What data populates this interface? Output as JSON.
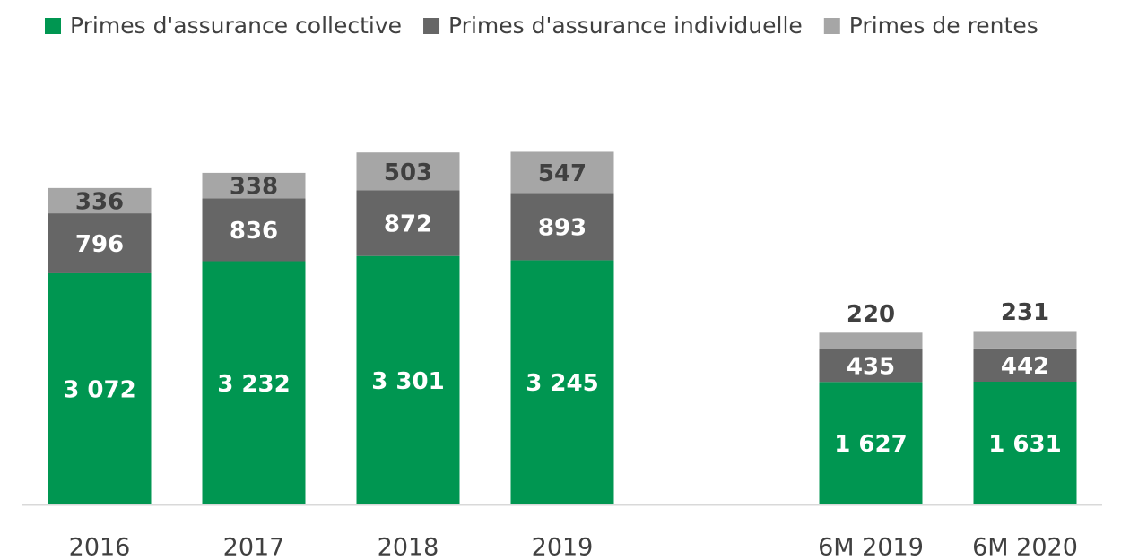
{
  "chart_data": {
    "type": "stacked-bar",
    "categories": [
      "2016",
      "2017",
      "2018",
      "2019",
      null,
      "6M 2019",
      "6M 2020"
    ],
    "series": [
      {
        "name": "Primes d'assurance collective",
        "color": "#009651",
        "values": [
          3072,
          3232,
          3301,
          3245,
          null,
          1627,
          1631
        ],
        "value_labels": [
          "3 072",
          "3 232",
          "3 301",
          "3 245",
          null,
          "1 627",
          "1 631"
        ]
      },
      {
        "name": "Primes d'assurance individuelle",
        "color": "#666666",
        "values": [
          796,
          836,
          872,
          893,
          null,
          435,
          442
        ],
        "value_labels": [
          "796",
          "836",
          "872",
          "893",
          null,
          "435",
          "442"
        ]
      },
      {
        "name": "Primes de rentes",
        "color": "#a6a6a6",
        "values": [
          336,
          338,
          503,
          547,
          null,
          220,
          231
        ],
        "value_labels": [
          "336",
          "338",
          "503",
          "547",
          null,
          "220",
          "231"
        ]
      }
    ],
    "ylim": [
      0,
      5000
    ],
    "legend": "top"
  }
}
